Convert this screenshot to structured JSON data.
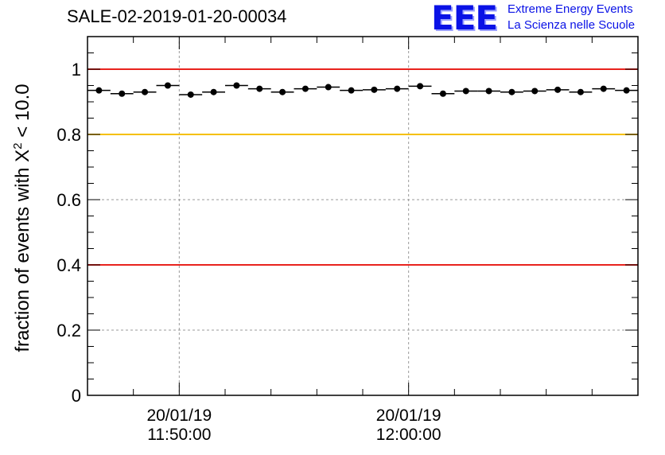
{
  "header": {
    "run_title": "SALE-02-2019-01-20-00034",
    "logo_text": "EEE",
    "logo_line1": "Extreme Energy Events",
    "logo_line2": "La Scienza nelle Scuole"
  },
  "chart_data": {
    "type": "scatter",
    "title": "SALE-02-2019-01-20-00034",
    "ylabel_prefix": "fraction of events with",
    "ylabel_symbol": "X",
    "ylabel_exponent": "2",
    "ylabel_suffix": "< 10.0",
    "xlabel": "",
    "ylim": [
      0,
      1.1
    ],
    "yticks": [
      0,
      0.2,
      0.4,
      0.6,
      0.8,
      1
    ],
    "ytick_labels": [
      "0",
      "0.2",
      "0.4",
      "0.6",
      "0.8",
      "1"
    ],
    "x_unit": "minutes since 20/01/19 11:46:00",
    "xlim": [
      0,
      24
    ],
    "xticks": [
      {
        "x": 4,
        "date": "20/01/19",
        "time": "11:50:00"
      },
      {
        "x": 14,
        "date": "20/01/19",
        "time": "12:00:00"
      }
    ],
    "grid": true,
    "reference_lines": [
      {
        "y": 1.0,
        "color": "#e8231e"
      },
      {
        "y": 0.8,
        "color": "#f5c000"
      },
      {
        "y": 0.4,
        "color": "#e8231e"
      }
    ],
    "series": [
      {
        "name": "fraction",
        "x_halfwidth": 0.5,
        "x": [
          0.5,
          1.5,
          2.5,
          3.5,
          4.5,
          5.5,
          6.5,
          7.5,
          8.5,
          9.5,
          10.5,
          11.5,
          12.5,
          13.5,
          14.5,
          15.5,
          16.5,
          17.5,
          18.5,
          19.5,
          20.5,
          21.5,
          22.5,
          23.5
        ],
        "values": [
          0.935,
          0.925,
          0.93,
          0.95,
          0.922,
          0.93,
          0.95,
          0.94,
          0.93,
          0.94,
          0.945,
          0.935,
          0.937,
          0.94,
          0.948,
          0.925,
          0.933,
          0.933,
          0.93,
          0.933,
          0.937,
          0.93,
          0.94,
          0.935
        ]
      }
    ]
  }
}
